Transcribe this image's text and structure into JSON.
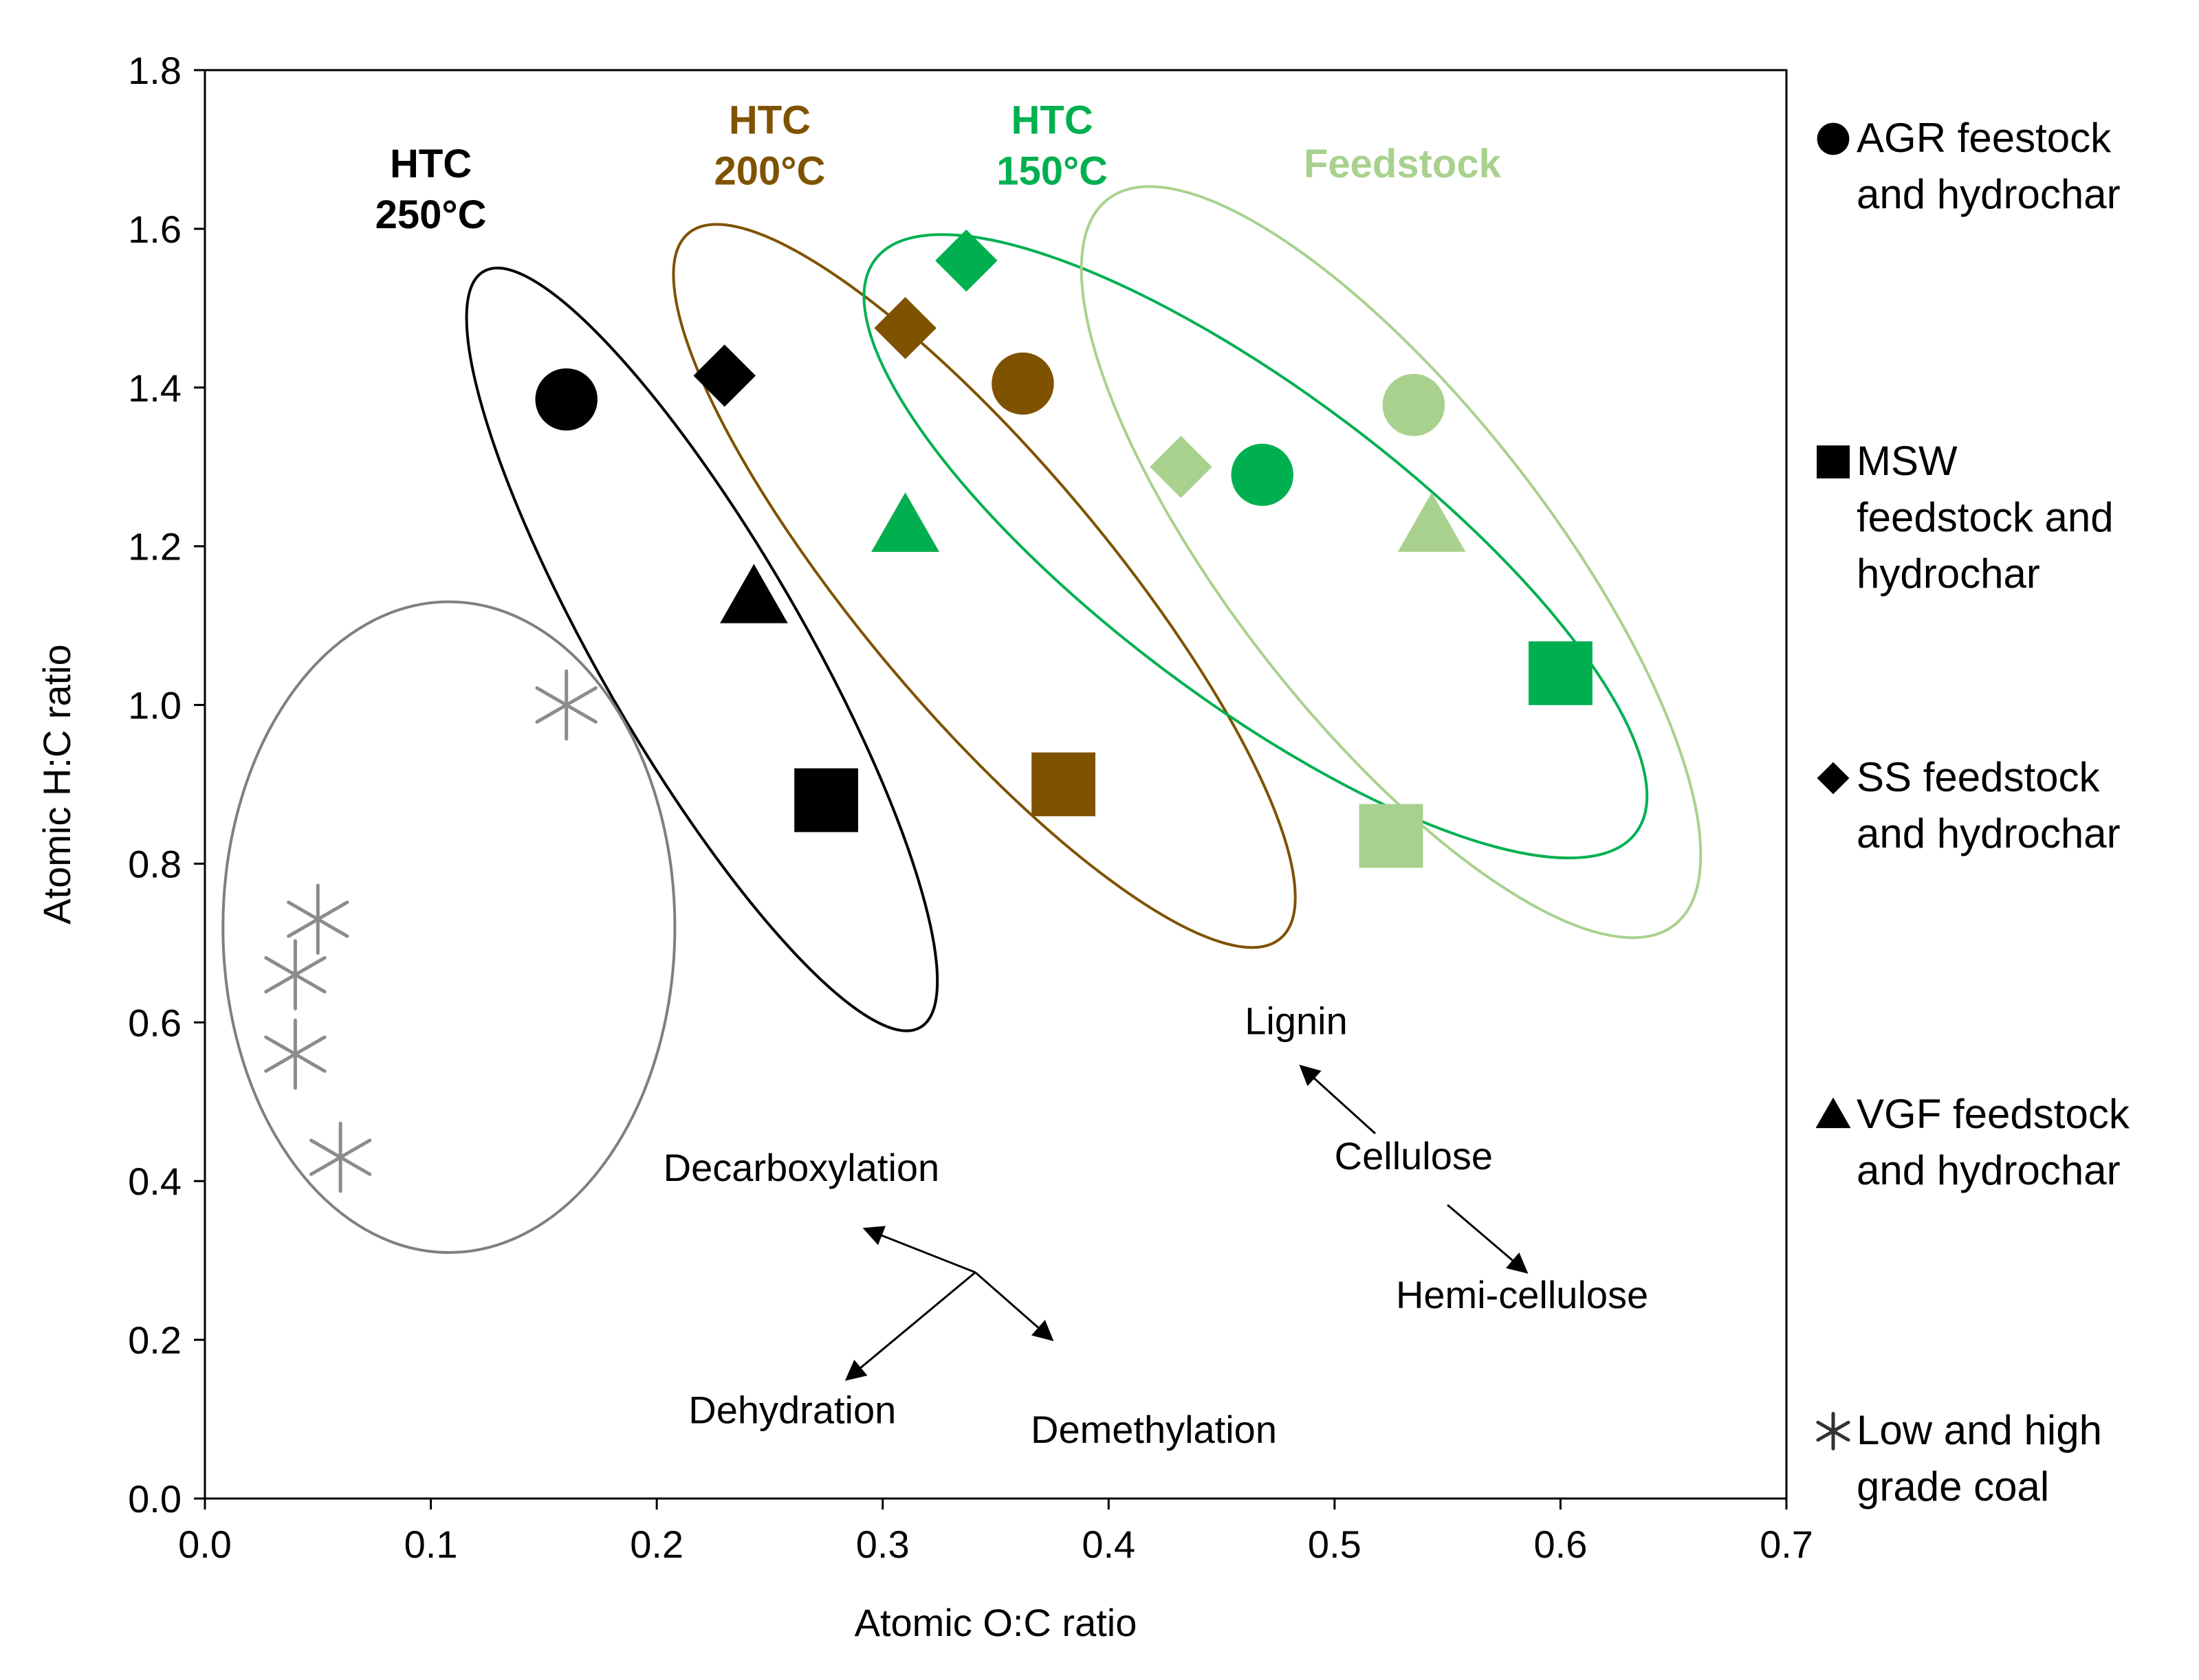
{
  "chart_data": {
    "type": "scatter",
    "title": "",
    "xlabel": "Atomic O:C ratio",
    "ylabel": "Atomic H:C ratio",
    "xlim": [
      0.0,
      0.7
    ],
    "ylim": [
      0.0,
      1.8
    ],
    "xticks": [
      "0.0",
      "0.1",
      "0.2",
      "0.3",
      "0.4",
      "0.5",
      "0.6",
      "0.7"
    ],
    "yticks": [
      "0.0",
      "0.2",
      "0.4",
      "0.6",
      "0.8",
      "1.0",
      "1.2",
      "1.4",
      "1.6",
      "1.8"
    ],
    "grid": false,
    "colors": {
      "htc250": "#000000",
      "htc200": "#7f5200",
      "htc150": "#00b050",
      "feedstock": "#a9d18e",
      "coal": "#8c8c8c",
      "coal_ellipse": "#7f7f7f"
    },
    "series": [
      {
        "name": "HTC 250°C",
        "color_key": "htc250",
        "points": [
          {
            "x": 0.16,
            "y": 1.385,
            "marker": "circle",
            "material": "AGR"
          },
          {
            "x": 0.23,
            "y": 1.415,
            "marker": "diamond",
            "material": "SS"
          },
          {
            "x": 0.243,
            "y": 1.135,
            "marker": "triangle",
            "material": "VGF"
          },
          {
            "x": 0.275,
            "y": 0.88,
            "marker": "square",
            "material": "MSW"
          }
        ]
      },
      {
        "name": "HTC 200°C",
        "color_key": "htc200",
        "points": [
          {
            "x": 0.362,
            "y": 1.405,
            "marker": "circle",
            "material": "AGR"
          },
          {
            "x": 0.31,
            "y": 1.475,
            "marker": "diamond",
            "material": "SS"
          },
          {
            "x": 0.31,
            "y": 1.225,
            "marker": "triangle",
            "material": "VGF"
          },
          {
            "x": 0.38,
            "y": 0.9,
            "marker": "square",
            "material": "MSW"
          }
        ]
      },
      {
        "name": "HTC 150°C",
        "color_key": "htc150",
        "points": [
          {
            "x": 0.468,
            "y": 1.29,
            "marker": "circle",
            "material": "AGR"
          },
          {
            "x": 0.337,
            "y": 1.56,
            "marker": "diamond",
            "material": "SS"
          },
          {
            "x": 0.31,
            "y": 1.225,
            "marker": "triangle",
            "material": "VGF"
          },
          {
            "x": 0.6,
            "y": 1.04,
            "marker": "square",
            "material": "MSW"
          }
        ]
      },
      {
        "name": "Feedstock",
        "color_key": "feedstock",
        "points": [
          {
            "x": 0.535,
            "y": 1.378,
            "marker": "circle",
            "material": "AGR"
          },
          {
            "x": 0.432,
            "y": 1.3,
            "marker": "diamond",
            "material": "SS"
          },
          {
            "x": 0.543,
            "y": 1.225,
            "marker": "triangle",
            "material": "VGF"
          },
          {
            "x": 0.525,
            "y": 0.835,
            "marker": "square",
            "material": "MSW"
          }
        ]
      },
      {
        "name": "Low and high grade coal",
        "color_key": "coal",
        "points": [
          {
            "x": 0.16,
            "y": 1.0,
            "marker": "asterisk"
          },
          {
            "x": 0.05,
            "y": 0.73,
            "marker": "asterisk"
          },
          {
            "x": 0.04,
            "y": 0.66,
            "marker": "asterisk"
          },
          {
            "x": 0.04,
            "y": 0.56,
            "marker": "asterisk"
          },
          {
            "x": 0.06,
            "y": 0.43,
            "marker": "asterisk"
          }
        ]
      }
    ],
    "ellipses": [
      {
        "name": "HTC 250°C",
        "color_key": "htc250",
        "cx": 0.22,
        "cy": 1.07,
        "rx": 0.045,
        "ry": 0.55,
        "rotate": -30
      },
      {
        "name": "HTC 200°C",
        "color_key": "htc200",
        "cx": 0.345,
        "cy": 1.15,
        "rx": 0.055,
        "ry": 0.58,
        "rotate": -40
      },
      {
        "name": "HTC 150°C",
        "color_key": "htc150",
        "cx": 0.465,
        "cy": 1.2,
        "rx": 0.068,
        "ry": 0.6,
        "rotate": -53
      },
      {
        "name": "Feedstock",
        "color_key": "feedstock",
        "cx": 0.525,
        "cy": 1.18,
        "rx": 0.07,
        "ry": 0.58,
        "rotate": -38
      },
      {
        "name": "Coal",
        "color_key": "coal_ellipse",
        "cx": 0.108,
        "cy": 0.72,
        "rx": 0.1,
        "ry": 0.41,
        "rotate": 0
      }
    ],
    "group_labels": [
      {
        "lines": [
          "HTC",
          "250°C"
        ],
        "color_key": "htc250",
        "x": 0.1,
        "y": 1.665
      },
      {
        "lines": [
          "HTC",
          "200°C"
        ],
        "color_key": "htc200",
        "x": 0.25,
        "y": 1.72
      },
      {
        "lines": [
          "HTC",
          "150°C"
        ],
        "color_key": "htc150",
        "x": 0.375,
        "y": 1.72
      },
      {
        "lines": [
          "Feedstock"
        ],
        "color_key": "feedstock",
        "x": 0.53,
        "y": 1.665
      }
    ],
    "annotations": {
      "reaction_pathways": {
        "origin": {
          "x": 0.341,
          "y": 0.285
        },
        "arrows": [
          {
            "label": "Decarboxylation",
            "to": {
              "x": 0.292,
              "y": 0.34
            },
            "label_at": {
              "x": 0.264,
              "y": 0.4
            }
          },
          {
            "label": "Dehydration",
            "to": {
              "x": 0.284,
              "y": 0.15
            },
            "label_at": {
              "x": 0.26,
              "y": 0.095
            }
          },
          {
            "label": "Demethylation",
            "to": {
              "x": 0.375,
              "y": 0.2
            },
            "label_at": {
              "x": 0.42,
              "y": 0.07
            }
          }
        ]
      },
      "biomass_components": {
        "center_label": "Cellulose",
        "center_at": {
          "x": 0.535,
          "y": 0.415
        },
        "arrows": [
          {
            "label": "Lignin",
            "from": {
              "x": 0.518,
              "y": 0.46
            },
            "to": {
              "x": 0.485,
              "y": 0.545
            },
            "label_at": {
              "x": 0.483,
              "y": 0.585
            }
          },
          {
            "label": "Hemi-cellulose",
            "from": {
              "x": 0.55,
              "y": 0.37
            },
            "to": {
              "x": 0.585,
              "y": 0.285
            },
            "label_at": {
              "x": 0.583,
              "y": 0.24
            }
          }
        ]
      }
    },
    "legend": {
      "position": "right",
      "items": [
        {
          "marker": "circle",
          "label": "AGR feestock\nand hydrochar"
        },
        {
          "marker": "square",
          "label": "MSW\nfeedstock and\nhydrochar"
        },
        {
          "marker": "diamond",
          "label": "SS feedstock\nand hydrochar"
        },
        {
          "marker": "triangle",
          "label": "VGF feedstock\nand hydrochar"
        },
        {
          "marker": "asterisk",
          "label": "Low and high\ngrade coal"
        }
      ]
    }
  }
}
